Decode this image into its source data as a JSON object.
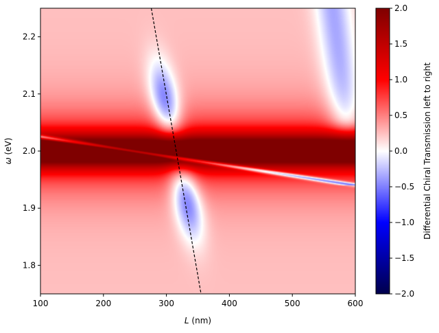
{
  "chart_data": {
    "type": "heatmap",
    "xlabel": {
      "symbol": "L",
      "unit": " (nm)"
    },
    "ylabel": {
      "symbol": "ω",
      "unit": " (eV)"
    },
    "xlim": [
      100,
      600
    ],
    "ylim": [
      1.75,
      2.25
    ],
    "x_ticks": [
      100,
      200,
      300,
      400,
      500,
      600
    ],
    "x_tick_labels": [
      "100",
      "200",
      "300",
      "400",
      "500",
      "600"
    ],
    "y_ticks": [
      1.8,
      1.9,
      2.0,
      2.1,
      2.2
    ],
    "y_tick_labels": [
      "1.8",
      "1.9",
      "2.0",
      "2.1",
      "2.2"
    ],
    "colormap": "seismic",
    "colorbar": {
      "label": "Differential Chiral Transmission left to right",
      "range": [
        -2.0,
        2.0
      ],
      "ticks": [
        -2.0,
        -1.5,
        -1.0,
        -0.5,
        0.0,
        0.5,
        1.0,
        1.5,
        2.0
      ],
      "tick_labels": [
        "−2.0",
        "−1.5",
        "−1.0",
        "−0.5",
        "0.0",
        "0.5",
        "1.0",
        "1.5",
        "2.0"
      ]
    },
    "field_description": {
      "background_value": 0.25,
      "main_band": {
        "center_omega": 2.0,
        "peak_value": 2.0
      },
      "anticrossings": [
        {
          "L_center": 310,
          "value_min": -0.9
        },
        {
          "L_center": 570,
          "value_min": -0.6
        }
      ],
      "fabry_perot_modes": [
        {
          "omega_at_L100": 2.025,
          "omega_at_L600": 1.94
        }
      ]
    },
    "overlay_line": {
      "style": "dashed",
      "color": "#000000",
      "points": [
        [
          276,
          2.25
        ],
        [
          355,
          1.75
        ]
      ]
    }
  }
}
